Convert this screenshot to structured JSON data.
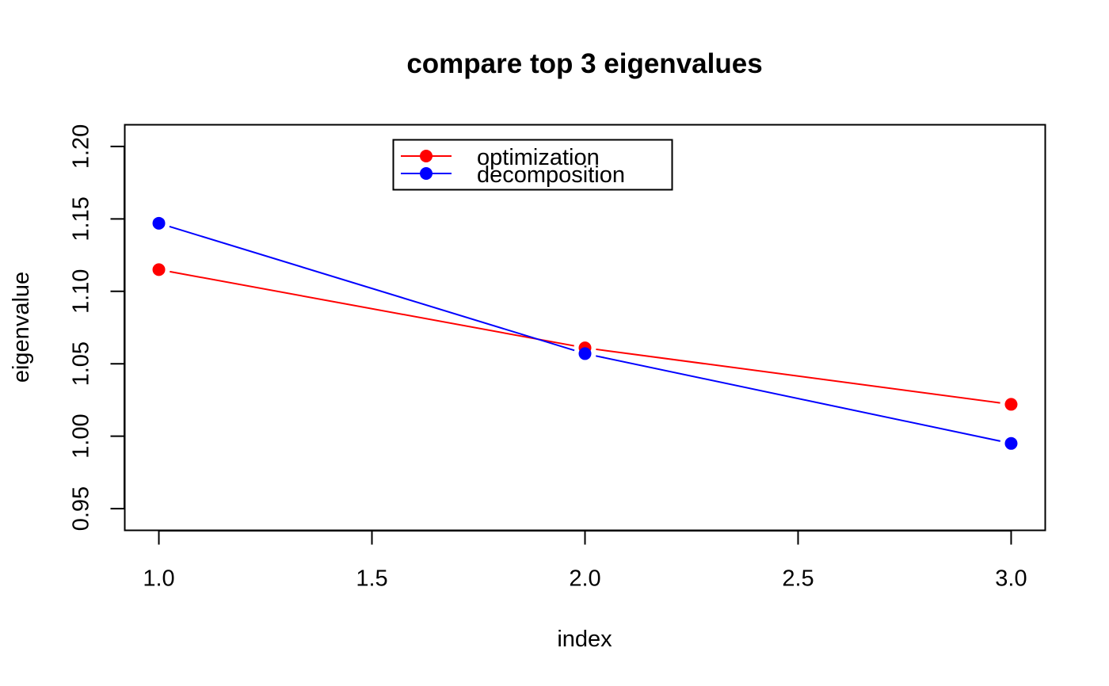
{
  "chart_data": {
    "type": "line",
    "title": "compare top 3 eigenvalues",
    "xlabel": "index",
    "ylabel": "eigenvalue",
    "x": [
      1,
      2,
      3
    ],
    "xlim": [
      0.92,
      3.08
    ],
    "ylim": [
      0.935,
      1.215
    ],
    "xticks": [
      "1.0",
      "1.5",
      "2.0",
      "2.5",
      "3.0"
    ],
    "yticks": [
      "0.95",
      "1.00",
      "1.05",
      "1.10",
      "1.15",
      "1.20"
    ],
    "grid": false,
    "legend": "top-center",
    "series": [
      {
        "name": "optimization",
        "color": "#ff0000",
        "values": [
          1.115,
          1.061,
          1.022
        ]
      },
      {
        "name": "decomposition",
        "color": "#0000ff",
        "values": [
          1.147,
          1.057,
          0.995
        ]
      }
    ]
  }
}
